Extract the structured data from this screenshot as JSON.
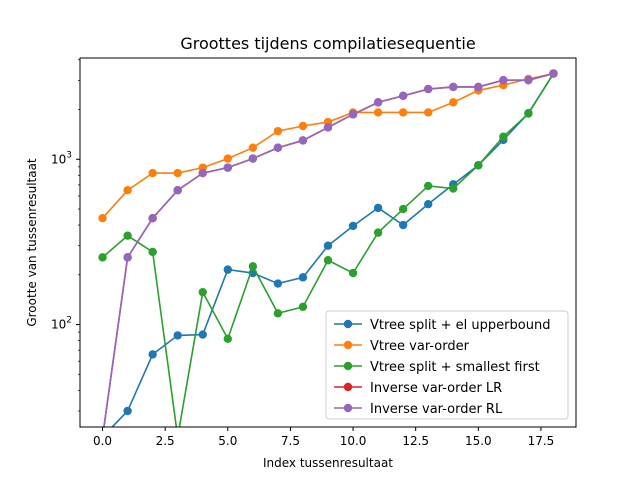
{
  "chart_data": {
    "type": "line",
    "title": "Groottes tijdens compilatiesequentie",
    "xlabel": "Index tussenresultaat",
    "ylabel": "Grootte van tussenresultaat",
    "yscale": "log",
    "xlim": [
      -0.9,
      18.9
    ],
    "ylim": [
      24,
      4100
    ],
    "xticks": [
      0.0,
      2.5,
      5.0,
      7.5,
      10.0,
      12.5,
      15.0,
      17.5
    ],
    "xtick_labels": [
      "0.0",
      "2.5",
      "5.0",
      "7.5",
      "10.0",
      "12.5",
      "15.0",
      "17.5"
    ],
    "yticks": [
      100,
      1000
    ],
    "ytick_labels": [
      "10^2",
      "10^3"
    ],
    "grid": false,
    "legend_position": "lower-right",
    "series": [
      {
        "name": "Vtree split + el upperbound",
        "color": "#1f77b4",
        "x": [
          0,
          1,
          2,
          3,
          4,
          5,
          6,
          7,
          8,
          9,
          10,
          11,
          12,
          13,
          14,
          15,
          16,
          17,
          18
        ],
        "values": [
          1,
          30,
          66,
          86,
          87,
          215,
          205,
          177,
          193,
          300,
          395,
          508,
          400,
          535,
          705,
          920,
          1310,
          1900,
          3300
        ]
      },
      {
        "name": "Vtree var-order",
        "color": "#ff7f0e",
        "x": [
          0,
          1,
          2,
          3,
          4,
          5,
          6,
          7,
          8,
          9,
          10,
          11,
          12,
          13,
          14,
          15,
          16,
          17,
          18
        ],
        "values": [
          440,
          650,
          825,
          825,
          890,
          1010,
          1175,
          1480,
          1590,
          1680,
          1920,
          1920,
          1920,
          1920,
          2210,
          2610,
          2810,
          3060,
          3300
        ]
      },
      {
        "name": "Vtree split + smallest first",
        "color": "#2ca02c",
        "x": [
          0,
          1,
          2,
          3,
          4,
          5,
          6,
          7,
          8,
          9,
          10,
          11,
          12,
          13,
          14,
          15,
          16,
          17,
          18
        ],
        "values": [
          255,
          345,
          275,
          1,
          157,
          82,
          225,
          117,
          128,
          245,
          205,
          360,
          500,
          690,
          665,
          920,
          1370,
          1890,
          3300
        ]
      },
      {
        "name": "Inverse var-order LR",
        "color": "#d62728",
        "x": [
          0,
          1,
          2,
          3,
          4,
          5,
          6,
          7,
          8,
          9,
          10,
          11,
          12,
          13,
          14,
          15,
          16,
          17,
          18
        ],
        "values": [
          1,
          255,
          440,
          650,
          825,
          890,
          1010,
          1175,
          1300,
          1560,
          1870,
          2210,
          2420,
          2660,
          2740,
          2740,
          3010,
          3010,
          3300
        ]
      },
      {
        "name": "Inverse var-order RL",
        "color": "#9467bd",
        "x": [
          0,
          1,
          2,
          3,
          4,
          5,
          6,
          7,
          8,
          9,
          10,
          11,
          12,
          13,
          14,
          15,
          16,
          17,
          18
        ],
        "values": [
          1,
          255,
          440,
          650,
          825,
          890,
          1010,
          1175,
          1300,
          1560,
          1870,
          2210,
          2420,
          2660,
          2740,
          2740,
          3010,
          3010,
          3300
        ]
      }
    ]
  }
}
